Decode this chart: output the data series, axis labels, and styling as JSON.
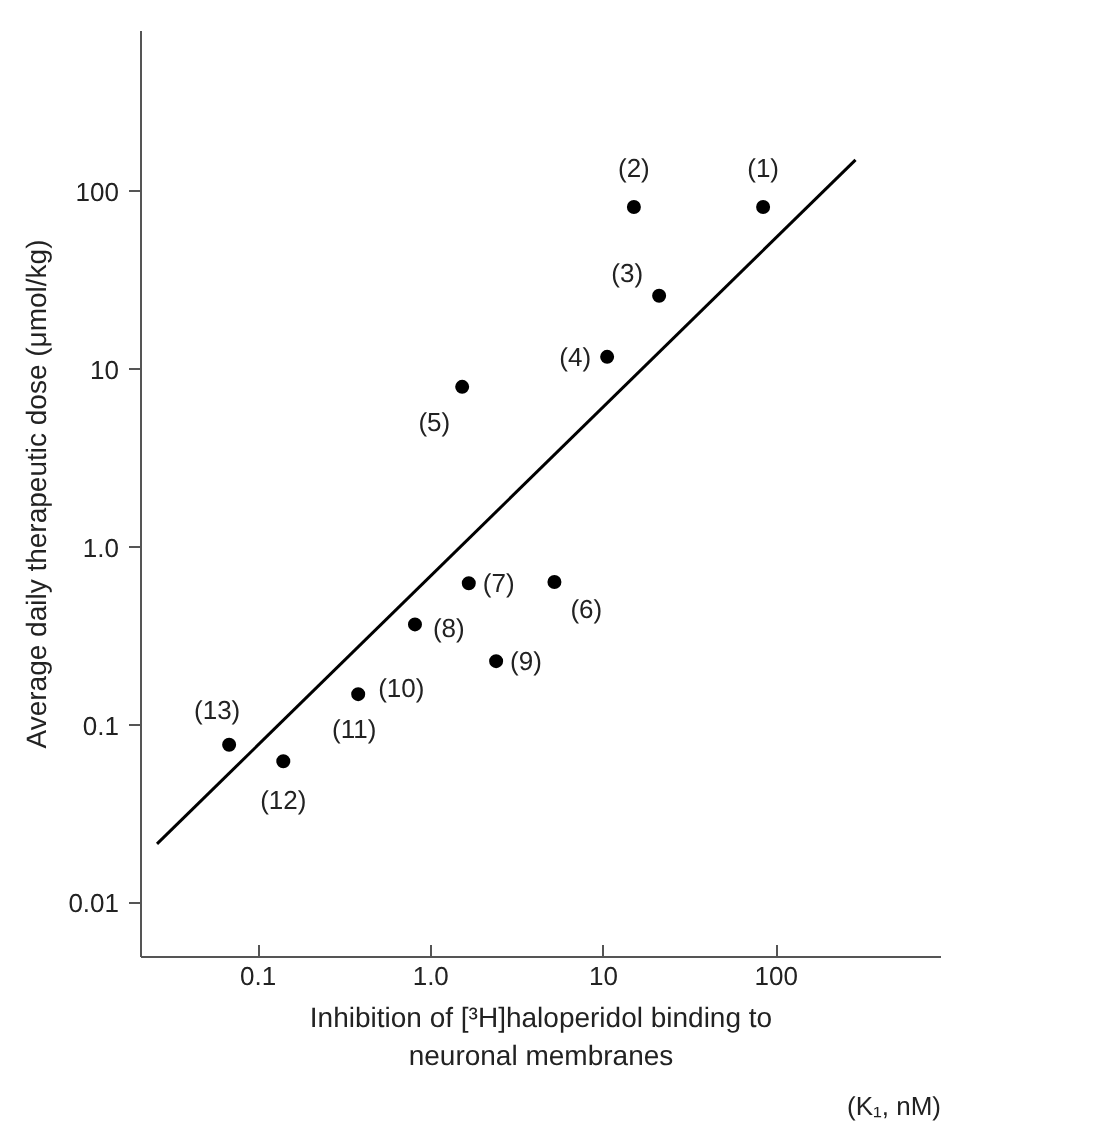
{
  "chart_data": {
    "type": "scatter",
    "xlabel": "Inhibition of [³H]haloperidol binding to\nneuronal membranes",
    "ylabel": "Average daily therapeutic dose (μmol/kg)",
    "series": [
      {
        "marker": "circle",
        "color": "#000000",
        "x": [
          84,
          15,
          21,
          10.5,
          1.52,
          5.2,
          1.66,
          0.81,
          2.39,
          0.38,
          0.14,
          0.068
        ],
        "values": [
          82,
          82,
          26,
          11.8,
          8.0,
          0.64,
          0.63,
          0.37,
          0.23,
          0.15,
          0.063,
          0.078
        ]
      },
      {
        "type": "line",
        "color": "#000000",
        "x": [
          0.026,
          288
        ],
        "values": [
          0.0216,
          151
        ]
      }
    ],
    "log": "xy",
    "grid": false,
    "xlim": [
      0.021,
      900
    ],
    "ylim": [
      0.005,
      800
    ],
    "xticks": [
      0.1,
      {
        "value": 1,
        "label": "1.0"
      },
      10,
      100
    ],
    "yticks": [
      0.01,
      0.1,
      {
        "value": 1,
        "label": "1.0"
      },
      10,
      100
    ],
    "annotations": [
      {
        "text": "(1)",
        "x": 84,
        "y": 82
      },
      {
        "text": "(2)",
        "x": 15,
        "y": 82
      },
      {
        "text": "(3)",
        "x": 21,
        "y": 26
      },
      {
        "text": "(4)",
        "x": 10.5,
        "y": 11.8
      },
      {
        "text": "(5)",
        "x": 1.52,
        "y": 8.0
      },
      {
        "text": "(6)",
        "x": 5.2,
        "y": 0.64
      },
      {
        "text": "(7)",
        "x": 1.66,
        "y": 0.63
      },
      {
        "text": "(8)",
        "x": 0.81,
        "y": 0.37
      },
      {
        "text": "(9)",
        "x": 2.39,
        "y": 0.23
      },
      {
        "text": "(10)",
        "x": 0.38,
        "y": 0.15
      },
      {
        "text": "(11)",
        "x": 0.38,
        "y": 0.15
      },
      {
        "text": "(12)",
        "x": 0.14,
        "y": 0.063
      },
      {
        "text": "(13)",
        "x": 0.068,
        "y": 0.078
      },
      "(K₁, nM)"
    ]
  }
}
